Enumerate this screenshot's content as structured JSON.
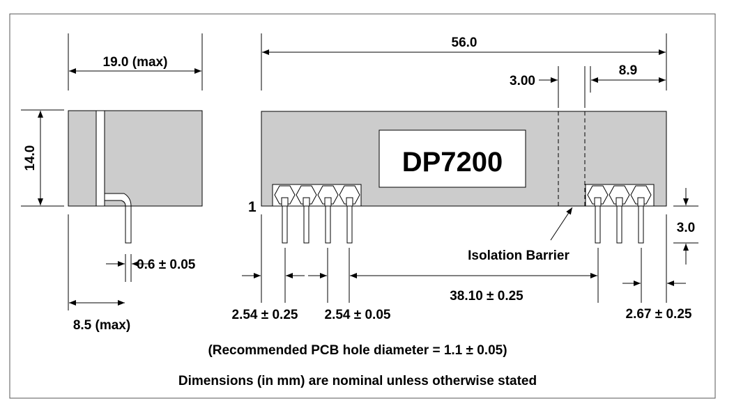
{
  "product": {
    "name": "DP7200"
  },
  "labels": {
    "side_width": "19.0 (max)",
    "side_height": "14.0",
    "pin_diameter": "0.6 ± 0.05",
    "side_depth": "8.5 (max)",
    "overall_length": "56.0",
    "barrier_gap": "3.00",
    "right_offset": "8.9",
    "pin1_marker": "1",
    "pin_length": "3.0",
    "isolation_barrier": "Isolation Barrier",
    "pitch_edge": "2.54 ± 0.25",
    "pitch_pins": "2.54 ± 0.05",
    "group_spacing": "38.10 ± 0.25",
    "right_edge": "2.67 ± 0.25"
  },
  "notes": {
    "pcb_hole": "(Recommended PCB hole diameter = 1.1 ± 0.05)",
    "nominal": "Dimensions (in mm) are nominal unless otherwise stated"
  },
  "colors": {
    "body_fill": "#cccccc",
    "line": "#000000",
    "frame": "#555555"
  }
}
